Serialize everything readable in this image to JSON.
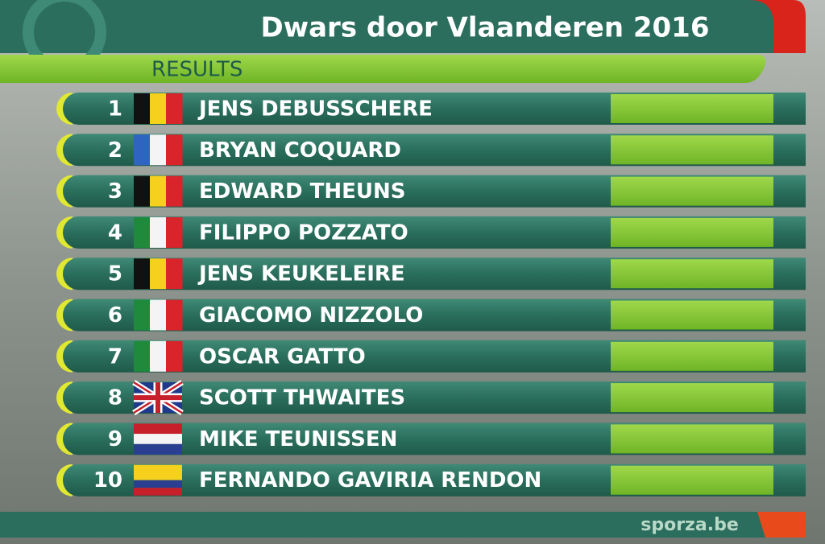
{
  "header": {
    "title": "Dwars door Vlaanderen 2016",
    "subtitle": "RESULTS"
  },
  "results": [
    {
      "rank": 1,
      "name": "JENS DEBUSSCHERE"
    },
    {
      "rank": 2,
      "name": "BRYAN COQUARD"
    },
    {
      "rank": 3,
      "name": "EDWARD THEUNS"
    },
    {
      "rank": 4,
      "name": "FILIPPO POZZATO"
    },
    {
      "rank": 5,
      "name": "JENS KEUKELEIRE"
    },
    {
      "rank": 6,
      "name": "GIACOMO NIZZOLO"
    },
    {
      "rank": 7,
      "name": "OSCAR GATTO"
    },
    {
      "rank": 8,
      "name": "SCOTT THWAITES"
    },
    {
      "rank": 9,
      "name": "MIKE TEUNISSEN"
    },
    {
      "rank": 10,
      "name": "FERNANDO GAVIRIA RENDON"
    }
  ],
  "footer": {
    "site": "sporza.be"
  }
}
